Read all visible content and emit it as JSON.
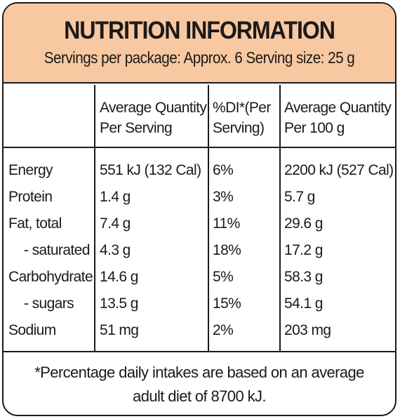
{
  "header": {
    "title": "NUTRITION INFORMATION",
    "serving_line": "Servings per package: Approx. 6  Serving size: 25 g"
  },
  "columns": {
    "per_serving": "Average Quantity\nPer Serving",
    "di": "%DI*(Per\nServing)",
    "per_100g": "Average Quantity\nPer 100 g"
  },
  "rows": [
    {
      "name": "Energy",
      "per_serving": "551 kJ (132 Cal)",
      "di": "6%",
      "per_100g": "2200 kJ (527 Cal)"
    },
    {
      "name": "Protein",
      "per_serving": "1.4 g",
      "di": "3%",
      "per_100g": "5.7 g"
    },
    {
      "name": "Fat, total",
      "per_serving": "7.4 g",
      "di": "11%",
      "per_100g": "29.6 g"
    },
    {
      "name": "- saturated",
      "per_serving": "4.3 g",
      "di": "18%",
      "per_100g": "17.2 g"
    },
    {
      "name": "Carbohydrate",
      "per_serving": "14.6 g",
      "di": "5%",
      "per_100g": "58.3 g"
    },
    {
      "name": "- sugars",
      "per_serving": "13.5 g",
      "di": "15%",
      "per_100g": "54.1 g"
    },
    {
      "name": "Sodium",
      "per_serving": "51 mg",
      "di": "2%",
      "per_100g": "203 mg"
    }
  ],
  "footer": {
    "line1": "*Percentage daily intakes are based on an average",
    "line2": "adult diet of 8700 kJ."
  }
}
